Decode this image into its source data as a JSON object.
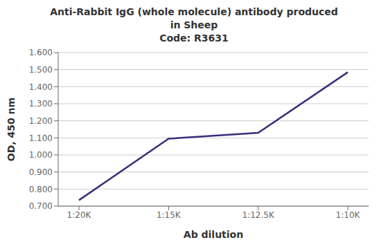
{
  "chart_data": {
    "type": "line",
    "title": "Anti-Rabbit IgG (whole molecule) antibody produced\nin Sheep\nCode: R3631",
    "x_label": "Ab dilution",
    "y_label": "OD, 450 nm",
    "categories": [
      "1:20K",
      "1:15K",
      "1:12.5K",
      "1:10K"
    ],
    "values": [
      0.735,
      1.095,
      1.13,
      1.485
    ],
    "color": "#3d2b7a",
    "ylim": [
      0.7,
      1.6
    ],
    "yticks": [
      {
        "value": 0.7,
        "label": "0.700"
      },
      {
        "value": 0.8,
        "label": "0.800"
      },
      {
        "value": 0.9,
        "label": "0.900"
      },
      {
        "value": 1.0,
        "label": "1.000"
      },
      {
        "value": 1.1,
        "label": "1.100"
      },
      {
        "value": 1.2,
        "label": "1.200"
      },
      {
        "value": 1.3,
        "label": "1.300"
      },
      {
        "value": 1.4,
        "label": "1.400"
      },
      {
        "value": 1.5,
        "label": "1.500"
      },
      {
        "value": 1.6,
        "label": "1.600"
      }
    ],
    "grid": true
  }
}
